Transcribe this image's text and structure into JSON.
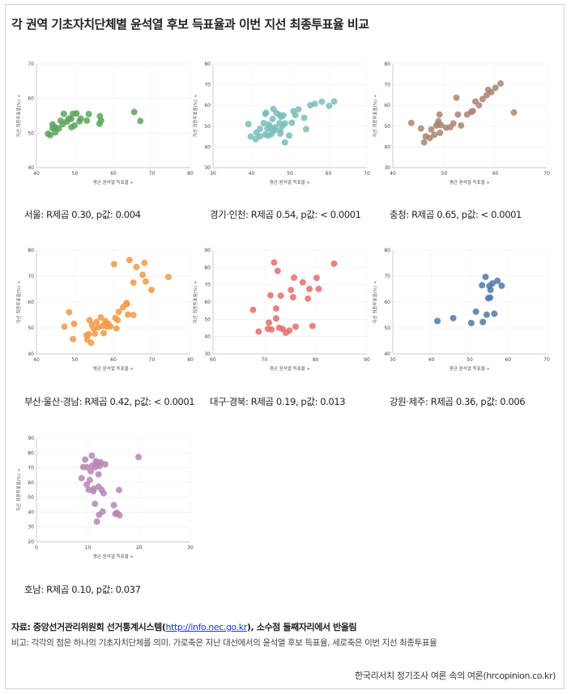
{
  "title": "각 권역 기초자치단체별 윤석열 후보 득표율과 이번 지선 최종투표율 비교",
  "footer": {
    "source_prefix": "자료: 중앙선거관리위원회 선거통계시스템(",
    "source_link": "http://info.nec.go.kr",
    "source_suffix": "), 소수점 둘째자리에서 반올림",
    "note": "비고: 각각의 점은 하나의 기초자치단체를 의미. 가로축은 지난 대선에서의 윤석열 후보 득표율, 세로축은 이번 지선 최종투표율",
    "credit": "한국리서치 정기조사 여론 속의 여론(hrcopinion.co.kr)"
  },
  "chart_data": [
    {
      "type": "scatter",
      "caption": "서울: R제곱 0.30, p값: 0.004",
      "color": "#5aa55a",
      "xlabel": "평균 윤석열 득표율 +",
      "ylabel": "지선 최종투표율(%) +",
      "xlim": [
        40,
        80
      ],
      "ylim": [
        40,
        70
      ],
      "xticks": [
        40,
        50,
        60,
        70,
        80
      ],
      "yticks": [
        40,
        50,
        60,
        70
      ],
      "x": [
        43,
        43.6,
        44.2,
        44.9,
        44.2,
        45,
        45.8,
        46.3,
        46.8,
        47.1,
        47.9,
        48.4,
        49,
        49.1,
        49.5,
        49.9,
        50.4,
        51.2,
        51.5,
        53.1,
        53.6,
        56.4,
        56.5,
        56.8,
        65.4,
        67
      ],
      "y": [
        49.8,
        49.4,
        51.4,
        50.2,
        52.5,
        51.6,
        51.3,
        53.6,
        52.6,
        55.6,
        53.3,
        54.2,
        54.1,
        51.7,
        55.6,
        52.2,
        55.7,
        53.4,
        54.2,
        53.6,
        55.5,
        52.7,
        54.9,
        53.6,
        56.1,
        53.5
      ]
    },
    {
      "type": "scatter",
      "caption": "경기·인천: R제곱 0.54, p값: < 0.0001",
      "color": "#79bdb8",
      "xlabel": "평균 윤석열 득표율 +",
      "ylabel": "지선 최종투표율(%) +",
      "xlim": [
        30,
        70
      ],
      "ylim": [
        30,
        80
      ],
      "xticks": [
        30,
        40,
        50,
        60,
        70
      ],
      "yticks": [
        30,
        40,
        50,
        60,
        70,
        80
      ],
      "x": [
        39.2,
        39.8,
        41.3,
        41.1,
        42.2,
        42.2,
        43.2,
        43.6,
        43.6,
        43.8,
        44.1,
        44.5,
        44.4,
        44.9,
        45.2,
        45.5,
        45.7,
        45.5,
        46.1,
        46.1,
        46.5,
        47.3,
        47.5,
        47.5,
        47.3,
        47.7,
        48.1,
        48.7,
        48.3,
        48.7,
        49.8,
        50.5,
        50.9,
        51.4,
        52.2,
        53.7,
        54.2,
        55.3,
        56.5,
        58.3,
        60.2,
        61.5
      ],
      "y": [
        51,
        45,
        46.9,
        43.7,
        45.1,
        48.7,
        51.5,
        46,
        55.9,
        56.5,
        48.7,
        50.7,
        45.4,
        49.4,
        46.2,
        53.5,
        58.2,
        47.6,
        48.1,
        49.4,
        56.3,
        51.4,
        46.4,
        48.2,
        55.4,
        54.5,
        50.3,
        51.4,
        55.2,
        42.2,
        45.5,
        51.7,
        57.2,
        55.3,
        58.1,
        54,
        48.6,
        60.1,
        60.8,
        61.8,
        59.8,
        61.9
      ]
    },
    {
      "type": "scatter",
      "caption": "충청: R제곱 0.65, p값: < 0.0001",
      "color": "#a98571",
      "xlabel": "평균 윤석열 득표율 +",
      "ylabel": "지선 최종투표율(%) +",
      "xlim": [
        40,
        70
      ],
      "ylim": [
        30,
        80
      ],
      "xticks": [
        40,
        50,
        60,
        70
      ],
      "yticks": [
        30,
        40,
        50,
        60,
        70,
        80
      ],
      "x": [
        43.6,
        45.5,
        46.1,
        46.4,
        47.2,
        47.5,
        48.1,
        48.5,
        48.8,
        48.9,
        49.1,
        49.2,
        49.4,
        50.4,
        51.2,
        51.8,
        52.4,
        52.7,
        53.3,
        54.5,
        55.3,
        55.6,
        56.1,
        56.8,
        57.5,
        58.3,
        58.6,
        59.2,
        60,
        61,
        63.6
      ],
      "y": [
        51.6,
        48.9,
        42.2,
        45.1,
        44.3,
        48.4,
        45.8,
        50.3,
        51,
        52.4,
        55.6,
        46.8,
        50.5,
        49.3,
        49.5,
        51.3,
        63.7,
        55.6,
        50.3,
        55.6,
        56.9,
        57.3,
        61.9,
        60.1,
        63.1,
        64.9,
        67.5,
        66.4,
        68.5,
        70.6,
        56.6
      ]
    },
    {
      "type": "scatter",
      "caption": "부산·울산·경남: R제곱 0.42, p값: < 0.0001",
      "color": "#f09a45",
      "xlabel": "평균 윤석열 득표율 +",
      "ylabel": "지선 최종투표율(%) +",
      "xlim": [
        40,
        80
      ],
      "ylim": [
        40,
        80
      ],
      "xticks": [
        40,
        50,
        60,
        70,
        80
      ],
      "yticks": [
        40,
        50,
        60,
        70,
        80
      ],
      "x": [
        47.3,
        48.5,
        49.5,
        49.8,
        53,
        53.2,
        53.6,
        53.8,
        54.2,
        54.4,
        54.9,
        55.2,
        55.6,
        56.1,
        56.7,
        57.2,
        57.5,
        57.9,
        58.1,
        58.4,
        58.7,
        59.2,
        60.2,
        60.5,
        60.8,
        61.1,
        61.4,
        62.5,
        63.4,
        63.5,
        63.8,
        64.2,
        65.2,
        65.2,
        66,
        67.6,
        68.1,
        68.4,
        69.9,
        74.3
      ],
      "y": [
        50.5,
        56.1,
        45.7,
        51.6,
        47.2,
        45.5,
        47.6,
        53,
        44.3,
        51.2,
        49.7,
        47.8,
        52.3,
        50.2,
        54.1,
        50.8,
        48,
        52.7,
        51.6,
        50.5,
        51.6,
        50.6,
        74.6,
        53.9,
        49.8,
        53,
        56.2,
        58,
        59.6,
        59.2,
        55.2,
        76.2,
        67.5,
        55,
        73.5,
        70.5,
        75.1,
        67.9,
        64.7,
        69.7
      ]
    },
    {
      "type": "scatter",
      "caption": "대구·경북: R제곱 0.19, p값: 0.013",
      "color": "#e56d6d",
      "xlabel": "평균 윤석열 득표율 +",
      "ylabel": "지선 최종투표율(%) +",
      "xlim": [
        60,
        90
      ],
      "ylim": [
        30,
        90
      ],
      "xticks": [
        60,
        70,
        80,
        90
      ],
      "yticks": [
        30,
        40,
        50,
        60,
        70,
        80,
        90
      ],
      "x": [
        67.8,
        68.9,
        70.7,
        70.9,
        71.2,
        71.4,
        71.9,
        72.3,
        72.3,
        72.6,
        72.9,
        73.2,
        73.6,
        74.2,
        74.9,
        75.2,
        75.6,
        75.8,
        76.1,
        77.5,
        78.5,
        78.8,
        79.4,
        80.2,
        80.6,
        83.6
      ],
      "y": [
        55.5,
        42.9,
        44.5,
        48.1,
        63.9,
        44.1,
        82.9,
        56.3,
        50.5,
        78,
        45.1,
        63.7,
        44.4,
        42.2,
        43.5,
        67,
        62.8,
        74.1,
        45.7,
        71.4,
        62,
        67.6,
        46.1,
        74,
        67.6,
        82.2
      ]
    },
    {
      "type": "scatter",
      "caption": "강원·제주: R제곱 0.36, p값: 0.006",
      "color": "#4f78a6",
      "xlabel": "평균 윤석열 득표율 +",
      "ylabel": "지선 최종투표율(%) +",
      "xlim": [
        30,
        70
      ],
      "ylim": [
        40,
        80
      ],
      "xticks": [
        30,
        40,
        50,
        60,
        70
      ],
      "yticks": [
        40,
        50,
        60,
        70,
        80
      ],
      "x": [
        41.6,
        45.7,
        50.4,
        51.6,
        53.2,
        53.4,
        54.1,
        54.4,
        54.8,
        55.1,
        55.3,
        55.4,
        55.9,
        56.4,
        57.2,
        58.3
      ],
      "y": [
        52.7,
        53.8,
        51.9,
        56.3,
        66.5,
        52.3,
        69.7,
        55.1,
        61.5,
        66.2,
        61.7,
        64.7,
        67.2,
        55.5,
        68.2,
        66.3
      ]
    },
    {
      "type": "scatter",
      "caption": "호남: R제곱 0.10, p값: 0.037",
      "color": "#b586b4",
      "xlabel": "평균 윤석열 득표율 +",
      "ylabel": "지선 최종투표율(%) +",
      "xlim": [
        0,
        30
      ],
      "ylim": [
        20,
        90
      ],
      "xticks": [
        0,
        10,
        20,
        30
      ],
      "yticks": [
        20,
        30,
        40,
        50,
        60,
        70,
        80,
        90
      ],
      "x": [
        8.8,
        9.1,
        9.5,
        9.8,
        9.9,
        10.2,
        10.4,
        10.6,
        10.8,
        10.9,
        11.1,
        11.2,
        11.4,
        11.5,
        11.6,
        11.8,
        11.9,
        12.1,
        12.1,
        12.2,
        12.3,
        12.5,
        12.7,
        12.9,
        13.1,
        13.4,
        15.1,
        15.4,
        15.7,
        16.1,
        16.2,
        19.9
      ],
      "y": [
        63,
        70.5,
        75.5,
        58.6,
        70.3,
        55.1,
        61.7,
        67.6,
        78.1,
        71.4,
        54.2,
        55.8,
        45.6,
        70.4,
        74.4,
        33.6,
        73.2,
        57.2,
        65.5,
        38.2,
        71.2,
        73.7,
        55.1,
        40.4,
        52.8,
        72.3,
        44.7,
        38.8,
        39.6,
        54.9,
        37.9,
        77.2
      ]
    }
  ]
}
